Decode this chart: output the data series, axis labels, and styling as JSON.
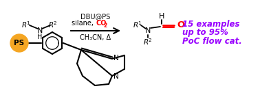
{
  "bg_color": "#ffffff",
  "ps_circle_color": "#F5A623",
  "ps_text": "PS",
  "ps_text_color": "#000000",
  "arrow_color": "#000000",
  "co2_color": "#ff0000",
  "condition_line1": "DBU@PS",
  "condition_line3": "CH₃CN, Δ",
  "result_line1": "15 examples",
  "result_line2": "up to 95%",
  "result_line3": "PoC flow cat.",
  "result_color": "#9900ff",
  "carbonyl_red": "#ff0000",
  "font_size_conditions": 7.0,
  "font_size_result": 8.5
}
